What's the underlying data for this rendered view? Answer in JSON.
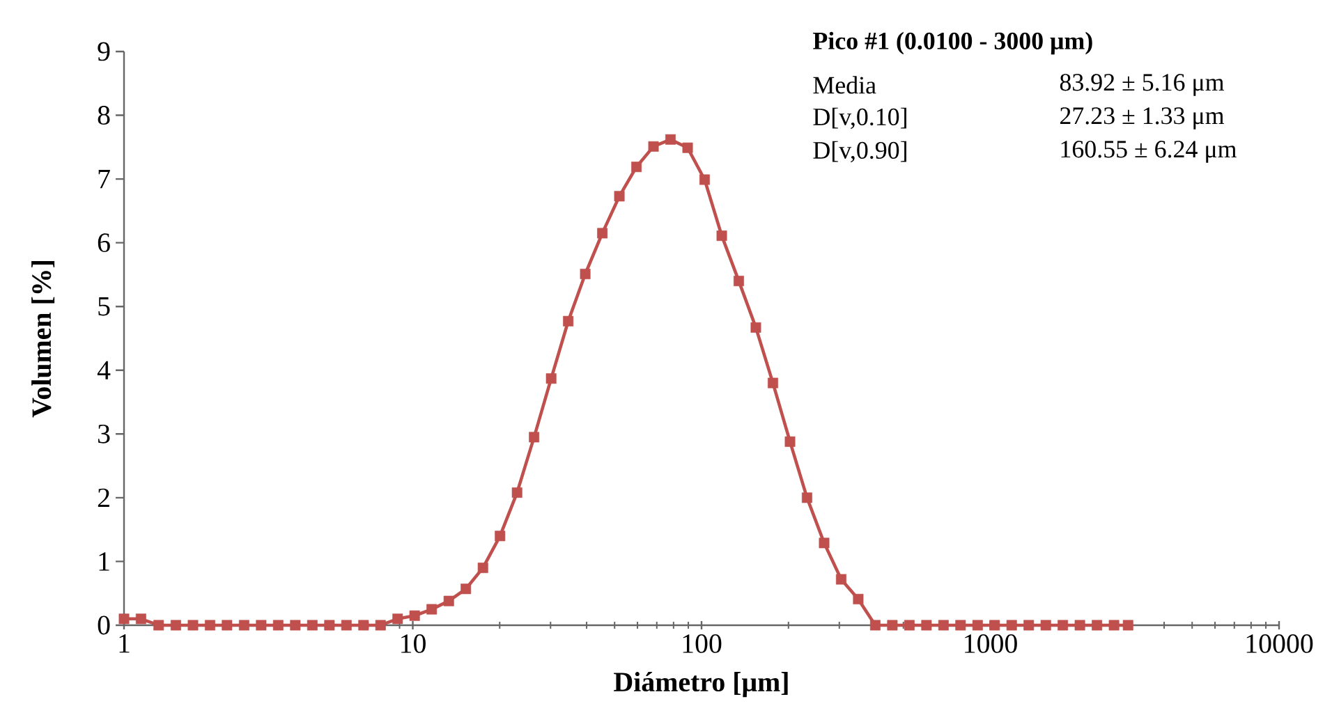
{
  "chart_data": {
    "type": "line",
    "xlabel": "Diámetro [μm]",
    "ylabel": "Volumen [%]",
    "log": "x",
    "marker": "square",
    "line_style": "solid",
    "xlim": [
      1,
      10000
    ],
    "xticks": [
      1,
      10,
      100,
      1000,
      10000
    ],
    "ylim": [
      0,
      9
    ],
    "yticks": [
      0,
      1,
      2,
      3,
      4,
      5,
      6,
      7,
      8,
      9
    ],
    "x": [
      1.0,
      1.145,
      1.318,
      1.512,
      1.733,
      1.986,
      2.273,
      2.606,
      2.985,
      3.42,
      3.919,
      4.489,
      5.145,
      5.893,
      6.752,
      7.736,
      8.863,
      10.15,
      11.63,
      13.33,
      15.27,
      17.5,
      20.05,
      22.97,
      26.31,
      30.15,
      34.54,
      39.57,
      45.34,
      51.94,
      59.51,
      68.18,
      78.11,
      89.5,
      102.5,
      117.5,
      134.6,
      154.2,
      176.7,
      202.5,
      231.9,
      265.8,
      304.5,
      348.9,
      399.7,
      457.9,
      524.6,
      601.1,
      688.6,
      788.9,
      903.9,
      1035,
      1186,
      1359,
      1557,
      1783,
      2043,
      2341,
      2682,
      3000
    ],
    "series": [
      {
        "color": "#c0504d",
        "values": [
          0.1,
          0.1,
          0,
          0,
          0,
          0,
          0,
          0,
          0,
          0,
          0,
          0,
          0,
          0,
          0,
          0,
          0.1,
          0.15,
          0.25,
          0.38,
          0.57,
          0.9,
          1.4,
          2.08,
          2.95,
          3.87,
          4.77,
          5.51,
          6.15,
          6.73,
          7.19,
          7.51,
          7.62,
          7.49,
          6.99,
          6.11,
          5.4,
          4.67,
          3.8,
          2.88,
          2.0,
          1.29,
          0.72,
          0.41,
          0,
          0,
          0,
          0,
          0,
          0,
          0,
          0,
          0,
          0,
          0,
          0,
          0,
          0,
          0,
          0
        ]
      }
    ],
    "annotations": [
      "Pico #1 (0.0100 - 3000 μm)",
      "Media",
      "83.92 ± 5.16 μm",
      "D[v,0.10]",
      "27.23 ± 1.33 μm",
      "D[v,0.90]",
      "160.55 ± 6.24 μm"
    ]
  }
}
